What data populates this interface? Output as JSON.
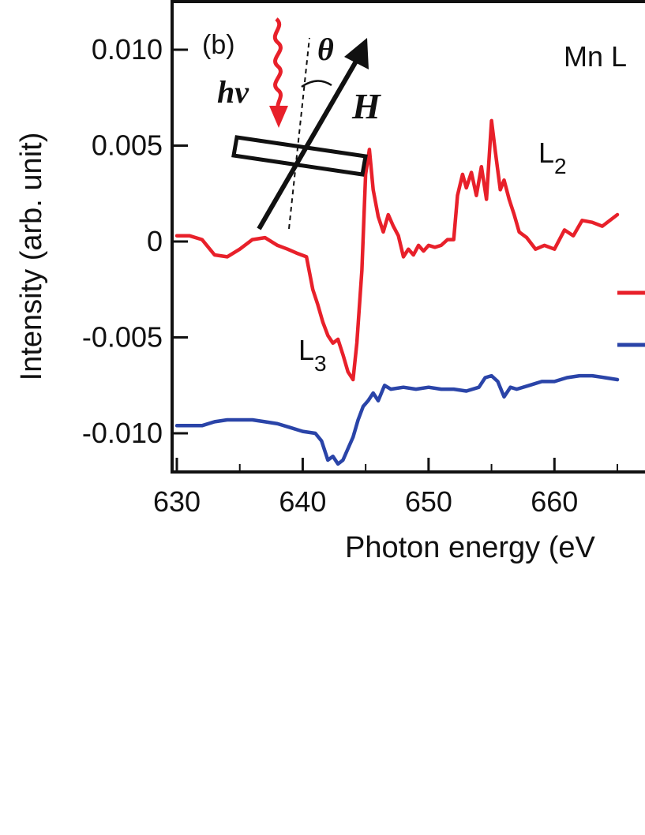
{
  "chart_data": {
    "type": "line",
    "panel_label": "(b)",
    "title": "Mn L",
    "xlabel": "Photon energy (eV",
    "ylabel": "Intensity (arb. unit)",
    "xlim": [
      630,
      665
    ],
    "ylim": [
      -0.012,
      0.012
    ],
    "x_ticks": [
      630,
      640,
      650,
      660
    ],
    "x_tick_labels": [
      "630",
      "640",
      "650",
      "660"
    ],
    "y_ticks": [
      0.01,
      0.005,
      0,
      -0.005,
      -0.01
    ],
    "y_tick_labels": [
      "0.010",
      "0.005",
      "0",
      "-0.005",
      "-0.010"
    ],
    "grid": false,
    "annotations": {
      "L3": {
        "main": "L",
        "sub": "3",
        "x": 641,
        "y": -0.0065
      },
      "L2": {
        "main": "L",
        "sub": "2",
        "x": 658,
        "y": 0.0045
      },
      "hv": "hv",
      "theta": "θ",
      "H": "H"
    },
    "series": [
      {
        "color": "#e8202a",
        "x": [
          630,
          631,
          632,
          633,
          634,
          635,
          636,
          637,
          638,
          638.8,
          639.5,
          640.3,
          640.8,
          641.2,
          641.6,
          642,
          642.4,
          642.8,
          643.2,
          643.6,
          644,
          644.3,
          644.7,
          645,
          645.3,
          645.6,
          646,
          646.4,
          646.8,
          647.2,
          647.6,
          648,
          648.4,
          648.8,
          649.2,
          649.6,
          650,
          650.5,
          651,
          651.5,
          652,
          652.3,
          652.7,
          653,
          653.4,
          653.8,
          654.2,
          654.6,
          655,
          655.3,
          655.7,
          656,
          656.4,
          656.8,
          657.2,
          657.8,
          658.5,
          659.2,
          660,
          660.8,
          661.5,
          662.2,
          663,
          663.8,
          665
        ],
        "values": [
          0.0003,
          0.0003,
          0.0001,
          -0.0007,
          -0.0008,
          -0.0004,
          0.0001,
          0.0002,
          -0.0002,
          -0.0004,
          -0.0006,
          -0.0008,
          -0.0025,
          -0.0033,
          -0.0042,
          -0.0049,
          -0.0053,
          -0.0051,
          -0.0059,
          -0.0068,
          -0.0072,
          -0.0053,
          -0.0015,
          0.0035,
          0.0048,
          0.0027,
          0.0013,
          0.0005,
          0.0014,
          0.0008,
          0.0003,
          -0.0008,
          -0.0004,
          -0.0007,
          -0.0002,
          -0.0005,
          -0.0002,
          -0.0003,
          -0.0002,
          0.0001,
          0.0001,
          0.0024,
          0.0035,
          0.0028,
          0.0036,
          0.0024,
          0.0039,
          0.0022,
          0.0063,
          0.0047,
          0.0027,
          0.0032,
          0.0022,
          0.0014,
          0.0005,
          0.0002,
          -0.0004,
          -0.0002,
          -0.0004,
          0.0006,
          0.0003,
          0.0011,
          0.001,
          0.0008,
          0.0014
        ]
      },
      {
        "color": "#2a44a8",
        "x": [
          630,
          631,
          632,
          633,
          634,
          635,
          636,
          637,
          638,
          639,
          640,
          641,
          641.5,
          642,
          642.4,
          642.8,
          643.2,
          643.6,
          644,
          644.4,
          644.8,
          645.2,
          645.6,
          646,
          646.5,
          647,
          648,
          649,
          650,
          651,
          652,
          653,
          654,
          654.5,
          655,
          655.5,
          656,
          656.5,
          657,
          658,
          659,
          660,
          661,
          662,
          663,
          664,
          665
        ],
        "values": [
          -0.0096,
          -0.0096,
          -0.0096,
          -0.0094,
          -0.0093,
          -0.0093,
          -0.0093,
          -0.0094,
          -0.0095,
          -0.0097,
          -0.0099,
          -0.01,
          -0.0104,
          -0.0114,
          -0.0112,
          -0.0116,
          -0.0114,
          -0.0108,
          -0.0102,
          -0.0093,
          -0.0086,
          -0.0083,
          -0.0079,
          -0.0083,
          -0.0075,
          -0.0077,
          -0.0076,
          -0.0077,
          -0.0076,
          -0.0077,
          -0.0077,
          -0.0078,
          -0.0076,
          -0.0071,
          -0.007,
          -0.0073,
          -0.0081,
          -0.0076,
          -0.0077,
          -0.0075,
          -0.0073,
          -0.0073,
          -0.0071,
          -0.007,
          -0.007,
          -0.0071,
          -0.0072
        ]
      }
    ]
  }
}
